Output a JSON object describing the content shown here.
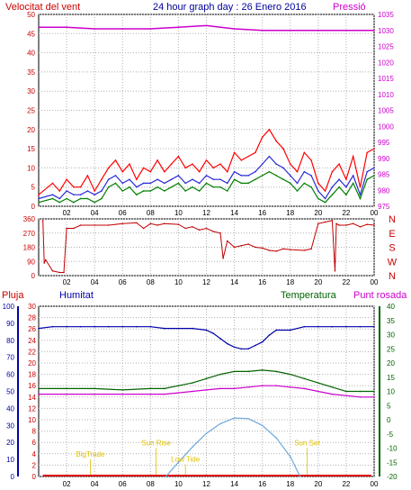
{
  "colors": {
    "background": "#ffffff",
    "frame": "#000000",
    "grid": "#b0b0b0",
    "wind_gust": "#ff0000",
    "wind_avg": "#2a2ad6",
    "wind_dir": "#c00000",
    "wind_green": "#008000",
    "pressure": "#cc00cc",
    "humidity": "#0000aa",
    "temperature": "#006400",
    "dew_point": "#cc00cc",
    "rain": "#dd0000",
    "sun": "#6fa8dc",
    "events": "#e0c000"
  },
  "header": {
    "left": "Velocitat del vent",
    "center": "24 hour graph day : 26 Enero 2016",
    "right": "Pressió"
  },
  "chart_data": [
    {
      "type": "line",
      "name": "wind-pressure",
      "x_ticks": [
        "02",
        "04",
        "06",
        "08",
        "10",
        "12",
        "14",
        "16",
        "18",
        "20",
        "22",
        "00"
      ],
      "y_left_ticks": [
        "0",
        "5",
        "10",
        "15",
        "20",
        "25",
        "30",
        "35",
        "40",
        "45",
        "50"
      ],
      "y_right_ticks": [
        "975",
        "980",
        "985",
        "990",
        "995",
        "1000",
        "1005",
        "1010",
        "1015",
        "1020",
        "1025",
        "1030",
        "1035"
      ],
      "ylim_left": [
        0,
        50
      ],
      "ylim_right": [
        975,
        1035
      ],
      "xlim": [
        0,
        24
      ],
      "series": [
        {
          "name": "gust",
          "axis": "left",
          "x": [
            0,
            1,
            1.5,
            2,
            2.5,
            3,
            3.5,
            4,
            4.5,
            5,
            5.5,
            6,
            6.5,
            7,
            7.5,
            8,
            8.5,
            9,
            9.5,
            10,
            10.5,
            11,
            11.5,
            12,
            12.5,
            13,
            13.5,
            14,
            14.5,
            15,
            15.5,
            16,
            16.5,
            17,
            17.5,
            18,
            18.5,
            19,
            19.5,
            20,
            20.5,
            21,
            21.5,
            22,
            22.5,
            23,
            23.5,
            24
          ],
          "values": [
            3,
            6,
            4,
            7,
            5,
            5,
            8,
            4,
            7,
            10,
            12,
            9,
            11,
            7,
            10,
            9,
            12,
            9,
            11,
            13,
            10,
            11,
            9,
            12,
            10,
            11,
            9,
            14,
            12,
            13,
            14,
            18,
            20,
            17,
            15,
            11,
            9,
            14,
            12,
            6,
            4,
            9,
            11,
            7,
            13,
            5,
            14,
            15
          ]
        },
        {
          "name": "average",
          "axis": "left",
          "x": [
            0,
            1,
            1.5,
            2,
            2.5,
            3,
            3.5,
            4,
            4.5,
            5,
            5.5,
            6,
            6.5,
            7,
            7.5,
            8,
            8.5,
            9,
            9.5,
            10,
            10.5,
            11,
            11.5,
            12,
            12.5,
            13,
            13.5,
            14,
            14.5,
            15,
            15.5,
            16,
            16.5,
            17,
            17.5,
            18,
            18.5,
            19,
            19.5,
            20,
            20.5,
            21,
            21.5,
            22,
            22.5,
            23,
            23.5,
            24
          ],
          "values": [
            2,
            3,
            2,
            4,
            3,
            3,
            4,
            3,
            4,
            7,
            8,
            6,
            7,
            5,
            6,
            6,
            7,
            6,
            7,
            8,
            6,
            7,
            6,
            8,
            7,
            7,
            6,
            9,
            8,
            8,
            9,
            11,
            13,
            11,
            10,
            8,
            6,
            9,
            8,
            4,
            2,
            5,
            7,
            5,
            8,
            3,
            9,
            10
          ]
        },
        {
          "name": "green",
          "axis": "left",
          "x": [
            0,
            1,
            1.5,
            2,
            2.5,
            3,
            3.5,
            4,
            4.5,
            5,
            5.5,
            6,
            6.5,
            7,
            7.5,
            8,
            8.5,
            9,
            9.5,
            10,
            10.5,
            11,
            11.5,
            12,
            12.5,
            13,
            13.5,
            14,
            14.5,
            15,
            15.5,
            16,
            16.5,
            17,
            17.5,
            18,
            18.5,
            19,
            19.5,
            20,
            20.5,
            21,
            21.5,
            22,
            22.5,
            23,
            23.5,
            24
          ],
          "values": [
            1,
            2,
            1,
            2,
            1,
            2,
            2,
            1,
            2,
            5,
            6,
            4,
            5,
            3,
            4,
            4,
            5,
            4,
            5,
            6,
            4,
            5,
            4,
            6,
            5,
            5,
            4,
            7,
            6,
            6,
            7,
            8,
            9,
            8,
            7,
            6,
            4,
            6,
            5,
            2,
            1,
            3,
            5,
            3,
            6,
            2,
            7,
            8
          ]
        },
        {
          "name": "pressure",
          "axis": "right",
          "x": [
            0,
            2,
            4,
            6,
            8,
            10,
            12,
            14,
            16,
            18,
            20,
            22,
            24
          ],
          "values": [
            1031,
            1031,
            1030.5,
            1030.5,
            1030.5,
            1031,
            1031.5,
            1030.5,
            1030,
            1030,
            1030,
            1030,
            1030
          ]
        }
      ]
    },
    {
      "type": "line",
      "name": "wind-direction",
      "x_ticks": [
        "02",
        "04",
        "06",
        "08",
        "10",
        "12",
        "14",
        "16",
        "18",
        "20",
        "22",
        "00"
      ],
      "y_left_ticks": [
        "0",
        "90",
        "180",
        "270",
        "360"
      ],
      "y_right_ticks": [
        "N",
        "W",
        "S",
        "E",
        "N"
      ],
      "ylim": [
        0,
        360
      ],
      "xlim": [
        0,
        24
      ],
      "series": [
        {
          "name": "direction",
          "x": [
            0.3,
            0.4,
            0.5,
            1,
            1.5,
            1.8,
            2,
            2.5,
            3,
            4,
            5,
            6,
            7,
            7.5,
            8,
            8.5,
            9,
            10,
            10.5,
            11,
            11.5,
            12,
            12.5,
            13,
            13.2,
            13.5,
            14,
            14.5,
            15,
            15.5,
            16,
            16.5,
            17,
            17.5,
            18,
            19,
            19.5,
            20,
            20.5,
            21,
            21.2,
            21.3,
            21.5,
            22,
            22.5,
            23,
            23.5,
            24
          ],
          "values": [
            350,
            80,
            100,
            30,
            20,
            20,
            300,
            300,
            320,
            320,
            320,
            330,
            335,
            300,
            330,
            320,
            330,
            325,
            300,
            310,
            290,
            300,
            280,
            270,
            110,
            220,
            180,
            190,
            200,
            180,
            175,
            160,
            155,
            170,
            165,
            160,
            170,
            330,
            340,
            350,
            30,
            330,
            320,
            320,
            330,
            310,
            325,
            320
          ]
        }
      ]
    },
    {
      "type": "line",
      "name": "humidity-temperature-rain",
      "legend": [
        "Pluja",
        "Humitat",
        "Temperatura",
        "Punt rosada"
      ],
      "x_ticks": [
        "02",
        "04",
        "06",
        "08",
        "10",
        "12",
        "14",
        "16",
        "18",
        "20",
        "22",
        "00"
      ],
      "y_rain_ticks": [
        "0",
        "2",
        "4",
        "6",
        "8",
        "10",
        "12",
        "14",
        "16",
        "18",
        "20",
        "22",
        "24",
        "26",
        "28",
        "30"
      ],
      "y_hum_ticks": [
        "0",
        "10",
        "20",
        "30",
        "40",
        "50",
        "60",
        "70",
        "80",
        "90",
        "100"
      ],
      "y_temp_ticks": [
        "-20",
        "-15",
        "-10",
        "-5",
        "0",
        "5",
        "10",
        "15",
        "20",
        "25",
        "30",
        "35",
        "40"
      ],
      "ylim_rain": [
        0,
        30
      ],
      "ylim_hum": [
        0,
        100
      ],
      "ylim_temp": [
        -20,
        40
      ],
      "xlim": [
        0,
        24
      ],
      "series": [
        {
          "name": "humidity",
          "axis": "hum",
          "x": [
            0,
            1,
            2,
            3,
            4,
            5,
            6,
            7,
            8,
            9,
            10,
            11,
            12,
            12.5,
            13,
            13.5,
            14,
            14.5,
            15,
            15.5,
            16,
            16.5,
            17,
            18,
            19,
            20,
            21,
            22,
            23,
            24
          ],
          "values": [
            87,
            88,
            88,
            88,
            88,
            88,
            88,
            88,
            88,
            87,
            87,
            87,
            86,
            84,
            81,
            78,
            76,
            75,
            75,
            77,
            79,
            83,
            86,
            86,
            88,
            88,
            88,
            88,
            88,
            88
          ]
        },
        {
          "name": "temperature",
          "axis": "temp",
          "x": [
            0,
            2,
            4,
            6,
            8,
            9,
            10,
            11,
            12,
            13,
            14,
            15,
            16,
            17,
            18,
            19,
            20,
            21,
            22,
            23,
            24
          ],
          "values": [
            11,
            11,
            11,
            10.5,
            11,
            11,
            12,
            13,
            14.5,
            16,
            17,
            17,
            17.5,
            17,
            16,
            14.5,
            13,
            11.5,
            10,
            10,
            10
          ]
        },
        {
          "name": "dew_point",
          "axis": "temp",
          "x": [
            0,
            2,
            4,
            6,
            8,
            9,
            10,
            11,
            12,
            13,
            14,
            15,
            16,
            17,
            18,
            19,
            20,
            21,
            22,
            23,
            24
          ],
          "values": [
            9,
            9,
            9,
            9,
            9,
            9,
            9.5,
            10,
            10.5,
            11,
            11,
            11.5,
            12,
            12,
            11.5,
            11,
            10,
            9,
            8.5,
            8,
            8
          ]
        },
        {
          "name": "sun",
          "axis": "rain",
          "x": [
            9.1,
            10,
            11,
            12,
            13,
            14,
            15,
            16,
            17,
            18,
            18.7
          ],
          "values": [
            0,
            2.5,
            5.2,
            7.6,
            9.3,
            10.3,
            10.2,
            9.0,
            6.8,
            3.5,
            0
          ]
        }
      ],
      "events": [
        {
          "label": "BigTrade",
          "x": 3.7,
          "y": 3.5
        },
        {
          "label": "Sun Rise",
          "x": 8.4,
          "y": 5.5
        },
        {
          "label": "Low Tide",
          "x": 10.5,
          "y": 2.6
        },
        {
          "label": "Sun Set",
          "x": 19.2,
          "y": 5.5
        }
      ]
    }
  ]
}
